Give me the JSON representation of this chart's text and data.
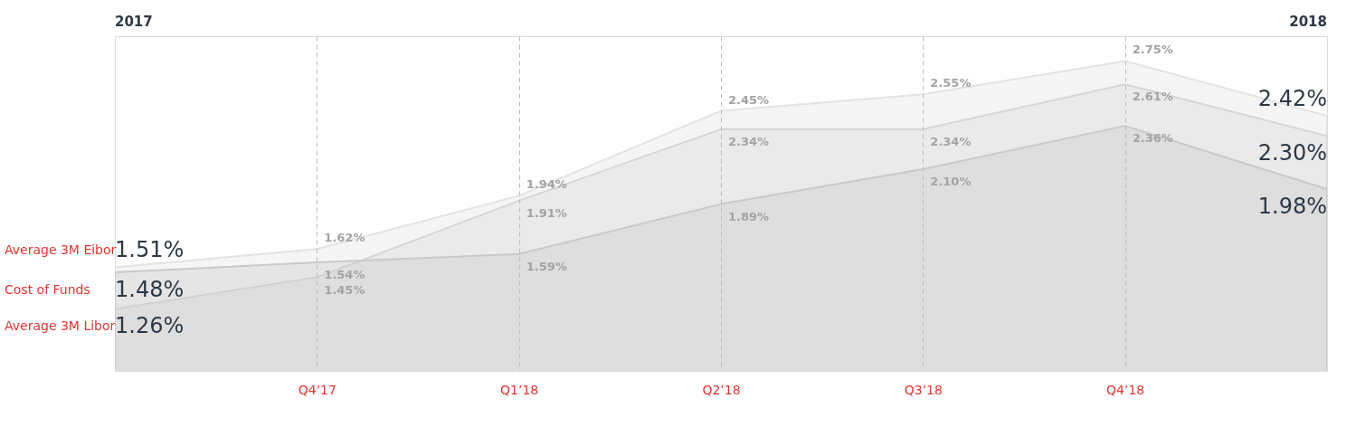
{
  "chart_data": {
    "type": "area",
    "categories": [
      null,
      "Q4’17",
      "Q1’18",
      "Q2’18",
      "Q3’18",
      "Q4’18",
      null
    ],
    "grid": "x",
    "annotations": [
      "2017",
      "2018"
    ],
    "series": [
      {
        "name": "Average 3M Eibor",
        "color": "#e3e3e3",
        "values": [
          1.51,
          1.62,
          1.94,
          2.45,
          2.55,
          2.75,
          2.42
        ],
        "value_labels": [
          "1.51%",
          "1.62%",
          "1.94%",
          "2.45%",
          "2.55%",
          "2.75%",
          "2.42%"
        ]
      },
      {
        "name": "Average 3M Libor",
        "color": "#d6d6d6",
        "values": [
          1.26,
          1.45,
          1.91,
          2.34,
          2.34,
          2.61,
          2.3
        ],
        "value_labels": [
          "1.26%",
          "1.45%",
          "1.91%",
          "2.34%",
          "2.34%",
          "2.61%",
          "2.30%"
        ]
      },
      {
        "name": "Cost of Funds",
        "color": "#c9c9c9",
        "values": [
          1.48,
          1.54,
          1.59,
          1.89,
          2.1,
          2.36,
          1.98
        ],
        "value_labels": [
          "1.48%",
          "1.54%",
          "1.59%",
          "1.89%",
          "2.10%",
          "2.36%",
          "1.98%"
        ]
      }
    ]
  }
}
